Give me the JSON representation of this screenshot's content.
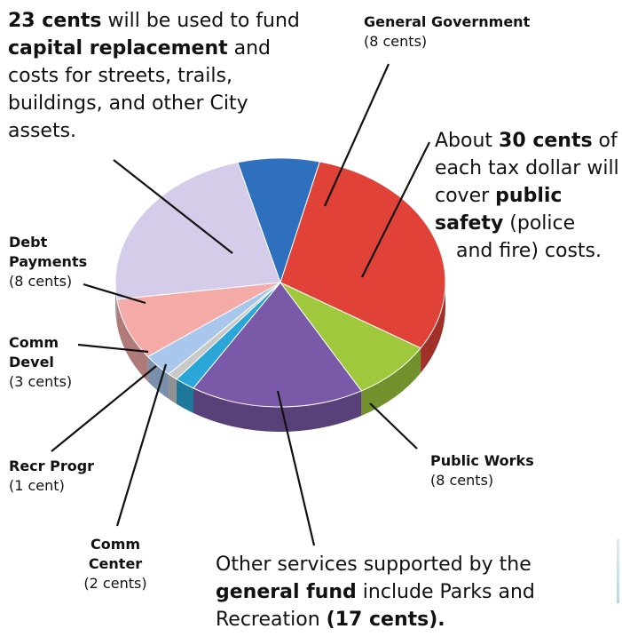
{
  "chart_data": {
    "type": "pie",
    "title": "",
    "slices": [
      {
        "label": "General Government",
        "value": 8,
        "value_text": "(8 cents)",
        "color": "#2e6fbe"
      },
      {
        "label": "Public Safety",
        "value": 30,
        "color": "#e04238"
      },
      {
        "label": "Public Works",
        "value": 8,
        "value_text": "(8 cents)",
        "color": "#9fc83c"
      },
      {
        "label": "Parks and Recreation",
        "value": 17,
        "color": "#7a5aa8"
      },
      {
        "label": "Comm Center",
        "value": 2,
        "value_text": "(2 cents)",
        "color": "#2aa7d8"
      },
      {
        "label": "Recr Progr",
        "value": 1,
        "value_text": "(1 cent)",
        "color": "#c9c9c9"
      },
      {
        "label": "Comm Devel",
        "value": 3,
        "value_text": "(3 cents)",
        "color": "#a9c6ec"
      },
      {
        "label": "Debt Payments",
        "value": 8,
        "value_text": "(8 cents)",
        "color": "#f4aaa6"
      },
      {
        "label": "Capital Replacement",
        "value": 23,
        "color": "#d4cce8"
      }
    ]
  },
  "annotations": {
    "capital": {
      "p1": "23 cents",
      "p2": " will be used to fund ",
      "p3": "capital replacement",
      "p4": " and costs for streets, trails, buildings, and other City assets."
    },
    "gen_gov": {
      "name": "General Government",
      "value": "(8 cents)"
    },
    "safety": {
      "p1": "About ",
      "p2": "30 cents",
      "p3": " of each tax dollar will cover ",
      "p4": "public safety",
      "p5": " (police",
      "p6": "and fire) costs."
    },
    "debt": {
      "name1": "Debt",
      "name2": "Payments",
      "value": "(8 cents)"
    },
    "comm_devel": {
      "name1": "Comm",
      "name2": "Devel",
      "value": "(3 cents)"
    },
    "recr": {
      "name": "Recr Progr",
      "value": "(1 cent)"
    },
    "comm_center": {
      "name1": "Comm",
      "name2": "Center",
      "value": "(2 cents)"
    },
    "public_works": {
      "name": "Public Works",
      "value": "(8 cents)"
    },
    "general_fund": {
      "p1": "Other services supported by the ",
      "p2": "general fund",
      "p3": " include Parks and Recreation ",
      "p4": "(17 cents)."
    }
  }
}
